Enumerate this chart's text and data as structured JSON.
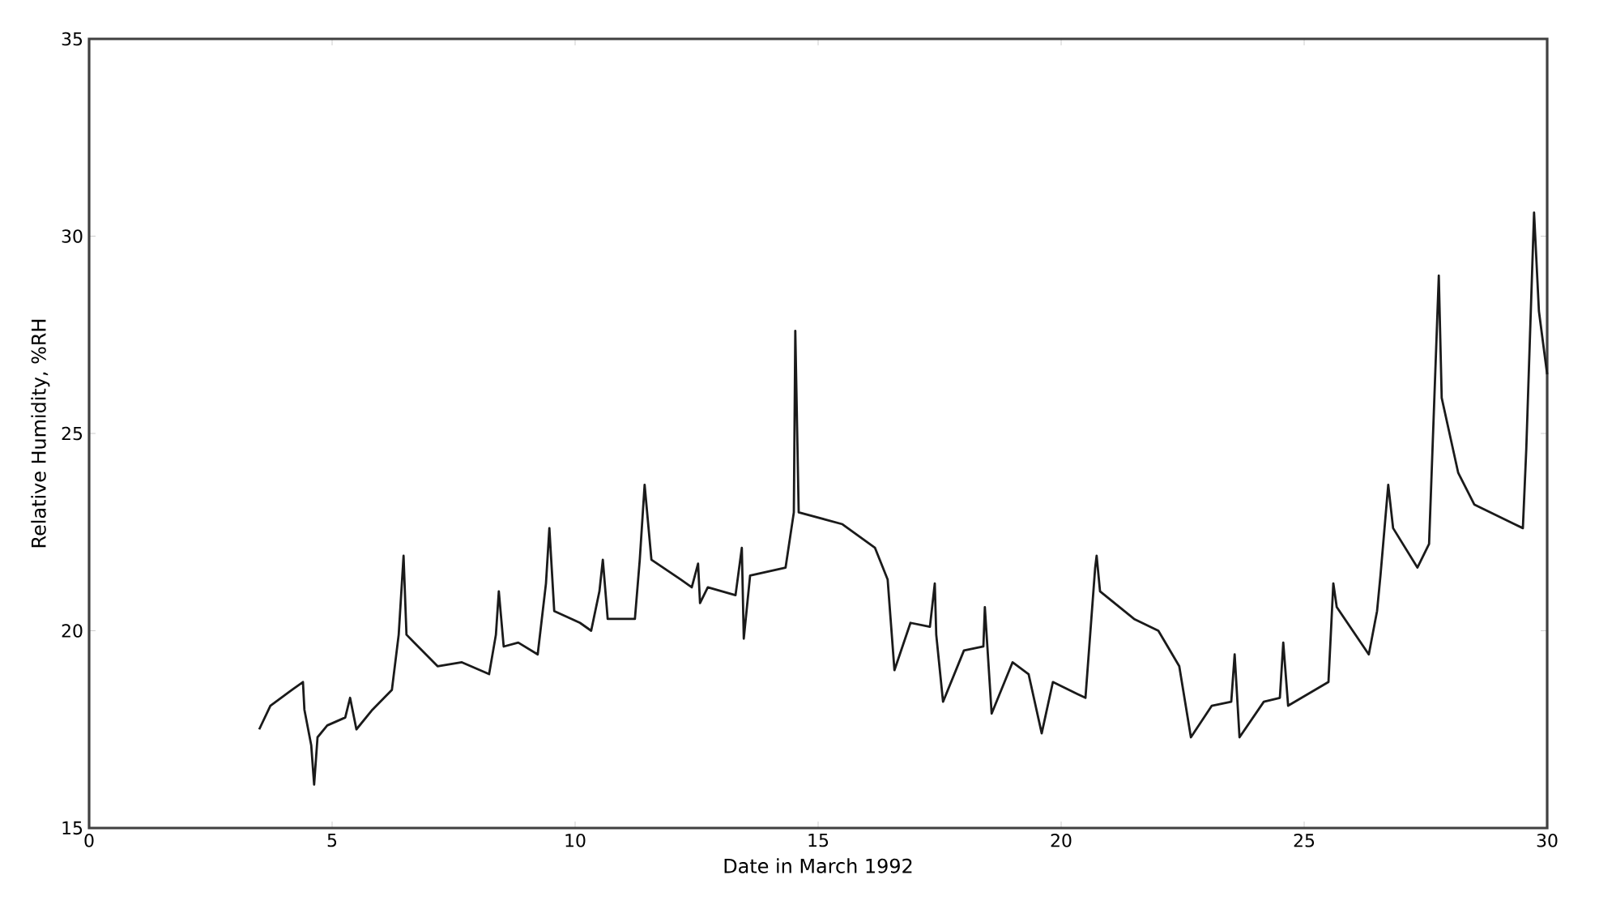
{
  "chart_data": {
    "type": "line",
    "xlabel": "Date in March 1992",
    "ylabel": "Relative Humidity, %RH",
    "xlim": [
      0,
      30
    ],
    "ylim": [
      15,
      35
    ],
    "xticks": [
      0,
      5,
      10,
      15,
      20,
      25,
      30
    ],
    "yticks": [
      15,
      20,
      25,
      30,
      35
    ],
    "marker": "none",
    "line_style": "solid",
    "series": [
      {
        "color": "#1a1a1a",
        "x": [
          3.5,
          3.73,
          4.17,
          4.4,
          4.43,
          4.57,
          4.63,
          4.7,
          4.9,
          5.27,
          5.37,
          5.5,
          5.83,
          6.23,
          6.37,
          6.47,
          6.53,
          7.17,
          7.67,
          8.23,
          8.37,
          8.43,
          8.53,
          8.83,
          9.23,
          9.4,
          9.47,
          9.57,
          10.1,
          10.33,
          10.5,
          10.57,
          10.67,
          11.23,
          11.33,
          11.43,
          11.57,
          12.17,
          12.4,
          12.53,
          12.57,
          12.73,
          13.3,
          13.43,
          13.47,
          13.6,
          14.33,
          14.5,
          14.53,
          14.6,
          15.5,
          16.17,
          16.43,
          16.57,
          16.9,
          17.3,
          17.4,
          17.43,
          17.57,
          18.0,
          18.4,
          18.43,
          18.57,
          19.0,
          19.33,
          19.6,
          19.83,
          20.33,
          20.5,
          20.7,
          20.73,
          20.8,
          21.5,
          22.0,
          22.43,
          22.67,
          23.1,
          23.5,
          23.57,
          23.67,
          24.17,
          24.5,
          24.57,
          24.67,
          25.5,
          25.6,
          25.67,
          26.33,
          26.5,
          26.57,
          26.73,
          26.83,
          27.33,
          27.57,
          27.77,
          27.83,
          28.17,
          28.5,
          29.33,
          29.5,
          29.57,
          29.73,
          29.83,
          30.0
        ],
        "values": [
          17.5,
          18.1,
          18.5,
          18.7,
          18.0,
          17.1,
          16.1,
          17.3,
          17.6,
          17.8,
          18.3,
          17.5,
          18.0,
          18.5,
          19.9,
          21.9,
          19.9,
          19.1,
          19.2,
          18.9,
          19.9,
          21.0,
          19.6,
          19.7,
          19.4,
          21.2,
          22.6,
          20.5,
          20.2,
          20.0,
          21.0,
          21.8,
          20.3,
          20.3,
          21.8,
          23.7,
          21.8,
          21.3,
          21.1,
          21.7,
          20.7,
          21.1,
          20.9,
          22.1,
          19.8,
          21.4,
          21.6,
          23.0,
          27.6,
          23.0,
          22.7,
          22.1,
          21.3,
          19.0,
          20.2,
          20.1,
          21.2,
          19.9,
          18.2,
          19.5,
          19.6,
          20.6,
          17.9,
          19.2,
          18.9,
          17.4,
          18.7,
          18.4,
          18.3,
          21.6,
          21.9,
          21.0,
          20.3,
          20.0,
          19.1,
          17.3,
          18.1,
          18.2,
          19.4,
          17.3,
          18.2,
          18.3,
          19.7,
          18.1,
          18.7,
          21.2,
          20.6,
          19.4,
          20.5,
          21.4,
          23.7,
          22.6,
          21.6,
          22.2,
          29.0,
          25.9,
          24.0,
          23.2,
          22.7,
          22.6,
          24.6,
          30.6,
          28.1,
          26.5
        ]
      }
    ]
  }
}
